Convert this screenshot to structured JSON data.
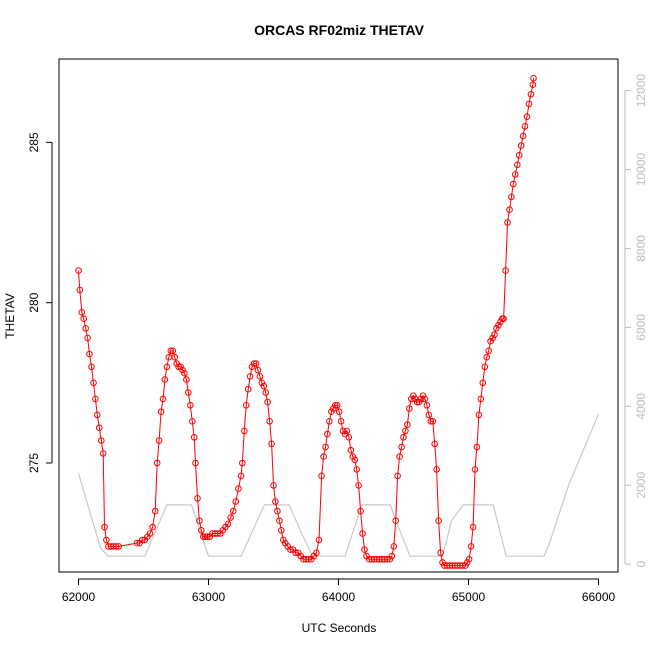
{
  "chart_data": {
    "type": "line",
    "title": "ORCAS RF02miz THETAV",
    "xlabel": "UTC Seconds",
    "ylabel": "THETAV",
    "y2label": "",
    "xlim": [
      61850,
      66150
    ],
    "ylim": [
      271.6,
      287.6
    ],
    "y2lim": [
      -200,
      12800
    ],
    "x_ticks": [
      62000,
      63000,
      64000,
      65000,
      66000
    ],
    "y_ticks": [
      275,
      280,
      285
    ],
    "y2_ticks": [
      0,
      2000,
      4000,
      6000,
      8000,
      10000,
      12000
    ],
    "grid": false,
    "colors": {
      "primary": "#ff0000",
      "secondary": "#c8c8c8",
      "frame": "#000000",
      "right_axis": "#bdbdbd"
    },
    "series": [
      {
        "axis": "left",
        "style": "line+circles",
        "color": "#ff0000",
        "points": [
          [
            62000,
            281.0
          ],
          [
            62010,
            280.4
          ],
          [
            62025,
            279.7
          ],
          [
            62040,
            279.5
          ],
          [
            62055,
            279.2
          ],
          [
            62070,
            278.9
          ],
          [
            62085,
            278.4
          ],
          [
            62100,
            278.0
          ],
          [
            62115,
            277.5
          ],
          [
            62130,
            277.0
          ],
          [
            62145,
            276.5
          ],
          [
            62160,
            276.1
          ],
          [
            62175,
            275.7
          ],
          [
            62190,
            275.3
          ],
          [
            62200,
            273.0
          ],
          [
            62215,
            272.6
          ],
          [
            62230,
            272.4
          ],
          [
            62250,
            272.4
          ],
          [
            62270,
            272.4
          ],
          [
            62290,
            272.4
          ],
          [
            62310,
            272.4
          ],
          [
            62450,
            272.5
          ],
          [
            62470,
            272.5
          ],
          [
            62490,
            272.6
          ],
          [
            62510,
            272.6
          ],
          [
            62530,
            272.7
          ],
          [
            62550,
            272.8
          ],
          [
            62570,
            273.0
          ],
          [
            62590,
            273.5
          ],
          [
            62605,
            275.0
          ],
          [
            62620,
            275.7
          ],
          [
            62635,
            276.6
          ],
          [
            62650,
            277.0
          ],
          [
            62665,
            277.6
          ],
          [
            62680,
            278.0
          ],
          [
            62695,
            278.3
          ],
          [
            62710,
            278.5
          ],
          [
            62725,
            278.5
          ],
          [
            62740,
            278.3
          ],
          [
            62755,
            278.1
          ],
          [
            62770,
            278.0
          ],
          [
            62785,
            278.0
          ],
          [
            62800,
            277.9
          ],
          [
            62815,
            277.8
          ],
          [
            62830,
            277.6
          ],
          [
            62845,
            277.2
          ],
          [
            62860,
            276.8
          ],
          [
            62875,
            276.3
          ],
          [
            62890,
            275.8
          ],
          [
            62900,
            275.0
          ],
          [
            62915,
            273.9
          ],
          [
            62930,
            273.2
          ],
          [
            62945,
            272.9
          ],
          [
            62960,
            272.7
          ],
          [
            62975,
            272.7
          ],
          [
            62990,
            272.7
          ],
          [
            63010,
            272.7
          ],
          [
            63030,
            272.8
          ],
          [
            63050,
            272.8
          ],
          [
            63070,
            272.8
          ],
          [
            63090,
            272.8
          ],
          [
            63110,
            272.9
          ],
          [
            63130,
            273.0
          ],
          [
            63150,
            273.1
          ],
          [
            63170,
            273.3
          ],
          [
            63190,
            273.5
          ],
          [
            63210,
            273.8
          ],
          [
            63230,
            274.2
          ],
          [
            63250,
            274.6
          ],
          [
            63260,
            275.0
          ],
          [
            63275,
            276.0
          ],
          [
            63290,
            276.8
          ],
          [
            63305,
            277.3
          ],
          [
            63320,
            277.7
          ],
          [
            63335,
            278.0
          ],
          [
            63350,
            278.1
          ],
          [
            63365,
            278.1
          ],
          [
            63380,
            277.9
          ],
          [
            63395,
            277.7
          ],
          [
            63410,
            277.5
          ],
          [
            63425,
            277.4
          ],
          [
            63440,
            277.2
          ],
          [
            63455,
            276.9
          ],
          [
            63470,
            276.3
          ],
          [
            63485,
            275.6
          ],
          [
            63500,
            274.3
          ],
          [
            63515,
            273.8
          ],
          [
            63530,
            273.5
          ],
          [
            63545,
            273.2
          ],
          [
            63560,
            272.9
          ],
          [
            63575,
            272.6
          ],
          [
            63590,
            272.5
          ],
          [
            63610,
            272.4
          ],
          [
            63630,
            272.3
          ],
          [
            63650,
            272.3
          ],
          [
            63670,
            272.2
          ],
          [
            63690,
            272.2
          ],
          [
            63710,
            272.1
          ],
          [
            63730,
            272.0
          ],
          [
            63750,
            272.0
          ],
          [
            63770,
            272.0
          ],
          [
            63790,
            272.0
          ],
          [
            63810,
            272.1
          ],
          [
            63830,
            272.2
          ],
          [
            63850,
            272.6
          ],
          [
            63870,
            274.6
          ],
          [
            63885,
            275.2
          ],
          [
            63900,
            275.5
          ],
          [
            63915,
            275.9
          ],
          [
            63930,
            276.3
          ],
          [
            63945,
            276.6
          ],
          [
            63960,
            276.7
          ],
          [
            63975,
            276.8
          ],
          [
            63990,
            276.8
          ],
          [
            64005,
            276.6
          ],
          [
            64020,
            276.3
          ],
          [
            64035,
            276.0
          ],
          [
            64050,
            275.9
          ],
          [
            64065,
            276.0
          ],
          [
            64080,
            275.8
          ],
          [
            64095,
            275.4
          ],
          [
            64110,
            275.2
          ],
          [
            64125,
            275.1
          ],
          [
            64140,
            274.8
          ],
          [
            64155,
            274.3
          ],
          [
            64170,
            273.5
          ],
          [
            64185,
            272.8
          ],
          [
            64200,
            272.3
          ],
          [
            64215,
            272.1
          ],
          [
            64235,
            272.0
          ],
          [
            64255,
            272.0
          ],
          [
            64275,
            272.0
          ],
          [
            64295,
            272.0
          ],
          [
            64315,
            272.0
          ],
          [
            64335,
            272.0
          ],
          [
            64355,
            272.0
          ],
          [
            64375,
            272.0
          ],
          [
            64395,
            272.0
          ],
          [
            64410,
            272.1
          ],
          [
            64425,
            272.4
          ],
          [
            64440,
            273.2
          ],
          [
            64455,
            274.6
          ],
          [
            64470,
            275.2
          ],
          [
            64485,
            275.5
          ],
          [
            64500,
            275.8
          ],
          [
            64515,
            276.0
          ],
          [
            64530,
            276.2
          ],
          [
            64545,
            276.7
          ],
          [
            64560,
            277.0
          ],
          [
            64575,
            277.1
          ],
          [
            64590,
            277.0
          ],
          [
            64605,
            276.9
          ],
          [
            64620,
            276.9
          ],
          [
            64635,
            277.0
          ],
          [
            64650,
            277.1
          ],
          [
            64665,
            277.0
          ],
          [
            64680,
            276.8
          ],
          [
            64695,
            276.5
          ],
          [
            64710,
            276.3
          ],
          [
            64725,
            276.3
          ],
          [
            64740,
            275.6
          ],
          [
            64755,
            274.8
          ],
          [
            64770,
            273.2
          ],
          [
            64785,
            272.2
          ],
          [
            64800,
            271.9
          ],
          [
            64815,
            271.8
          ],
          [
            64835,
            271.8
          ],
          [
            64855,
            271.8
          ],
          [
            64875,
            271.8
          ],
          [
            64895,
            271.8
          ],
          [
            64915,
            271.8
          ],
          [
            64935,
            271.8
          ],
          [
            64955,
            271.8
          ],
          [
            64975,
            271.8
          ],
          [
            64990,
            271.9
          ],
          [
            65005,
            272.0
          ],
          [
            65020,
            272.4
          ],
          [
            65035,
            273.0
          ],
          [
            65050,
            274.8
          ],
          [
            65065,
            275.5
          ],
          [
            65080,
            276.5
          ],
          [
            65095,
            277.0
          ],
          [
            65110,
            277.5
          ],
          [
            65125,
            278.0
          ],
          [
            65140,
            278.3
          ],
          [
            65155,
            278.5
          ],
          [
            65170,
            278.8
          ],
          [
            65185,
            278.9
          ],
          [
            65200,
            279.0
          ],
          [
            65215,
            279.2
          ],
          [
            65230,
            279.3
          ],
          [
            65245,
            279.4
          ],
          [
            65260,
            279.5
          ],
          [
            65270,
            279.5
          ],
          [
            65285,
            281.0
          ],
          [
            65300,
            282.5
          ],
          [
            65315,
            282.9
          ],
          [
            65330,
            283.3
          ],
          [
            65345,
            283.7
          ],
          [
            65360,
            284.0
          ],
          [
            65375,
            284.3
          ],
          [
            65390,
            284.6
          ],
          [
            65405,
            284.9
          ],
          [
            65420,
            285.2
          ],
          [
            65435,
            285.5
          ],
          [
            65450,
            285.8
          ],
          [
            65465,
            286.2
          ],
          [
            65480,
            286.5
          ],
          [
            65495,
            286.8
          ],
          [
            65500,
            287.0
          ]
        ]
      },
      {
        "axis": "right",
        "style": "line",
        "color": "#c8c8c8",
        "points": [
          [
            62000,
            2300
          ],
          [
            62170,
            400
          ],
          [
            62230,
            200
          ],
          [
            62270,
            200
          ],
          [
            62510,
            200
          ],
          [
            62680,
            1500
          ],
          [
            62870,
            1500
          ],
          [
            62900,
            1200
          ],
          [
            63000,
            200
          ],
          [
            63050,
            200
          ],
          [
            63250,
            200
          ],
          [
            63430,
            1500
          ],
          [
            63620,
            1500
          ],
          [
            63700,
            900
          ],
          [
            63800,
            200
          ],
          [
            64050,
            200
          ],
          [
            64180,
            1500
          ],
          [
            64400,
            1500
          ],
          [
            64430,
            1200
          ],
          [
            64550,
            200
          ],
          [
            64800,
            200
          ],
          [
            64870,
            1100
          ],
          [
            64960,
            1500
          ],
          [
            65190,
            1500
          ],
          [
            65290,
            200
          ],
          [
            65580,
            200
          ],
          [
            65620,
            500
          ],
          [
            65770,
            2000
          ],
          [
            66000,
            3800
          ]
        ]
      }
    ]
  }
}
